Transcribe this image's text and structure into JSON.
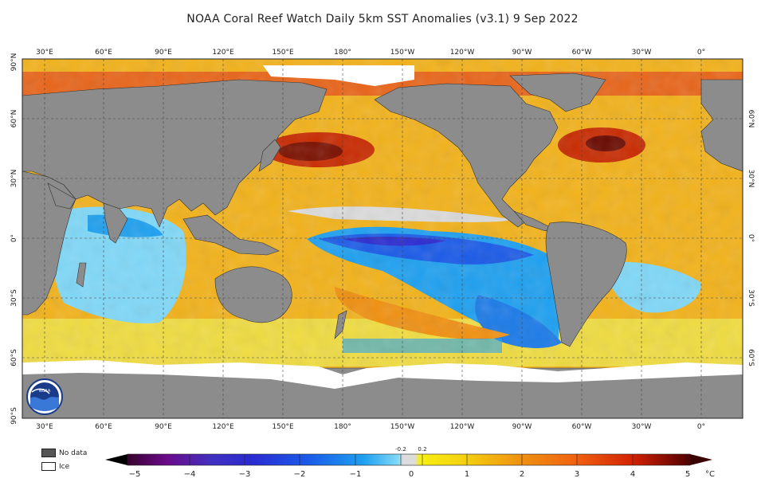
{
  "title": "NOAA Coral Reef Watch Daily 5km SST Anomalies  (v3.1)   9 Sep 2022",
  "map": {
    "top_labels": [
      "30°E",
      "60°E",
      "90°E",
      "120°E",
      "150°E",
      "180°",
      "150°W",
      "120°W",
      "90°W",
      "60°W",
      "30°W",
      "0°"
    ],
    "bottom_labels": [
      "30°E",
      "60°E",
      "90°E",
      "120°E",
      "150°E",
      "180°",
      "150°W",
      "120°W",
      "90°W",
      "60°W",
      "30°W",
      "0°"
    ],
    "left_labels": [
      "90°N",
      "60°N",
      "30°N",
      "0°",
      "30°S",
      "60°S",
      "90°S"
    ],
    "right_labels": [
      "60°N",
      "30°N",
      "0°",
      "30°S",
      "60°S"
    ]
  },
  "logo": {
    "text": "NOAA"
  },
  "legend": {
    "no_data": "No data",
    "ice": "Ice",
    "no_data_color": "#555555",
    "ice_color": "#ffffff",
    "land_color": "#8c8c8c"
  },
  "colorbar": {
    "ticks": [
      "−5",
      "−4",
      "−3",
      "−2",
      "−1",
      "0",
      "1",
      "2",
      "3",
      "4",
      "5"
    ],
    "small_ticks": [
      "-0.2",
      "0.2"
    ],
    "unit": "°C",
    "colors": [
      "#3a0030",
      "#6a0a8a",
      "#2a2ad0",
      "#1a5ae8",
      "#1ea0f0",
      "#7fd8f8",
      "#dcdcdc",
      "#f8f010",
      "#f4c010",
      "#f09010",
      "#f06010",
      "#d82a00",
      "#a00000",
      "#500000"
    ]
  }
}
